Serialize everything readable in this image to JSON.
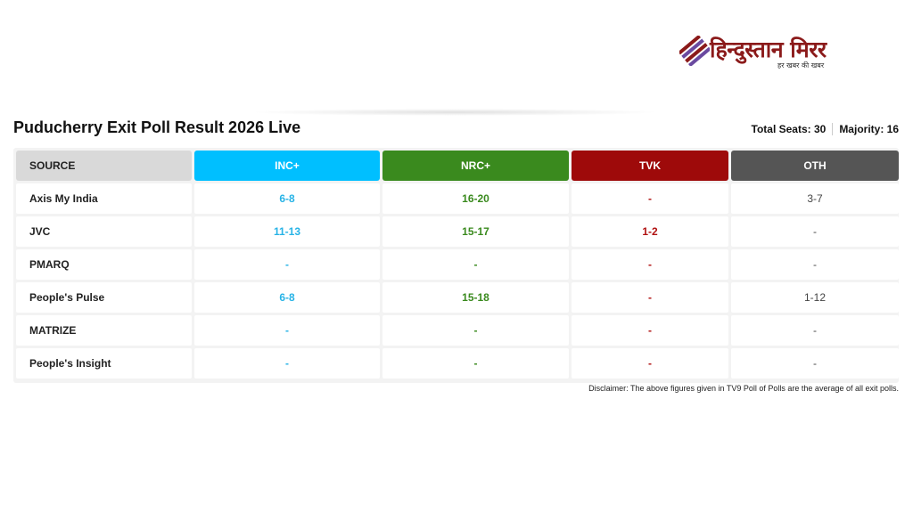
{
  "logo": {
    "name": "हिन्दुस्तान मिरर",
    "tagline": "हर खबर की खबर"
  },
  "title": "Puducherry Exit Poll Result 2026 Live",
  "summary": {
    "total_seats": "Total Seats: 30",
    "majority": "Majority: 16"
  },
  "table": {
    "headers": [
      "SOURCE",
      "INC+",
      "NRC+",
      "TVK",
      "OTH"
    ],
    "header_colors": [
      "#d9d9d9",
      "#00bfff",
      "#3a8a1e",
      "#9e0a0a",
      "#555555"
    ],
    "rows": [
      [
        "Axis My India",
        "6-8",
        "16-20",
        "-",
        "3-7"
      ],
      [
        "JVC",
        "11-13",
        "15-17",
        "1-2",
        "-"
      ],
      [
        "PMARQ",
        "-",
        "-",
        "-",
        "-"
      ],
      [
        "People's Pulse",
        "6-8",
        "15-18",
        "-",
        "1-12"
      ],
      [
        "MATRIZE",
        "-",
        "-",
        "-",
        "-"
      ],
      [
        "People's Insight",
        "-",
        "-",
        "-",
        "-"
      ]
    ]
  },
  "disclaimer": "Disclaimer: The above figures given in TV9 Poll of Polls are the average of all exit polls."
}
